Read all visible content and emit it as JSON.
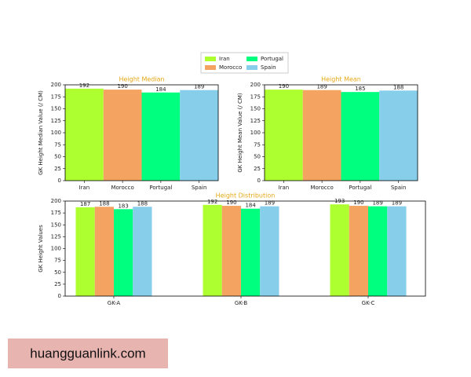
{
  "chart_data": [
    {
      "type": "bar",
      "title": "Height Median",
      "ylabel": "GK Height Median Value (/ CM)",
      "categories": [
        "Iran",
        "Morocco",
        "Portugal",
        "Spain"
      ],
      "values": [
        192,
        190,
        184,
        189
      ],
      "colors": [
        "#adff2f",
        "#f4a460",
        "#00ff7f",
        "#87ceeb"
      ],
      "ylim": [
        0,
        200
      ],
      "yticks": [
        0,
        25,
        50,
        75,
        100,
        125,
        150,
        175,
        200
      ]
    },
    {
      "type": "bar",
      "title": "Height Mean",
      "ylabel": "GK Height Mean Value (/ CM)",
      "categories": [
        "Iran",
        "Morocco",
        "Portugal",
        "Spain"
      ],
      "values": [
        190,
        189,
        185,
        188
      ],
      "colors": [
        "#adff2f",
        "#f4a460",
        "#00ff7f",
        "#87ceeb"
      ],
      "ylim": [
        0,
        200
      ],
      "yticks": [
        0,
        25,
        50,
        75,
        100,
        125,
        150,
        175,
        200
      ]
    },
    {
      "type": "bar",
      "title": "Height Distribution",
      "ylabel": "GK Height Values",
      "categories": [
        "GK-A",
        "GK-B",
        "GK-C"
      ],
      "series": [
        {
          "name": "Iran",
          "color": "#adff2f",
          "values": [
            187,
            192,
            193
          ]
        },
        {
          "name": "Morocco",
          "color": "#f4a460",
          "values": [
            188,
            190,
            190
          ]
        },
        {
          "name": "Portugal",
          "color": "#00ff7f",
          "values": [
            183,
            184,
            189
          ]
        },
        {
          "name": "Spain",
          "color": "#87ceeb",
          "values": [
            188,
            189,
            189
          ]
        }
      ],
      "ylim": [
        0,
        200
      ],
      "yticks": [
        0,
        25,
        50,
        75,
        100,
        125,
        150,
        175,
        200
      ]
    }
  ],
  "watermark": "huangguanlink.com"
}
